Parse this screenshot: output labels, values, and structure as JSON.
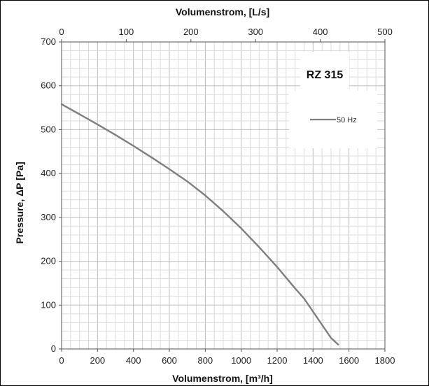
{
  "chart_data": {
    "type": "line",
    "title": "RZ 315",
    "xlabel": "Volumenstrom, [m³/h]",
    "x2label": "Volumenstrom, [L/s]",
    "ylabel": "Pressure, ΔP [Pa]",
    "xlim": [
      0,
      1800
    ],
    "x2lim": [
      0,
      500
    ],
    "ylim": [
      0,
      700
    ],
    "xticks": [
      0,
      200,
      400,
      600,
      800,
      1000,
      1200,
      1400,
      1600,
      1800
    ],
    "x2ticks": [
      0,
      100,
      200,
      300,
      400,
      500
    ],
    "yticks": [
      0,
      100,
      200,
      300,
      400,
      500,
      600,
      700
    ],
    "grid": true,
    "legend_position": "top-right",
    "series": [
      {
        "name": "50 Hz",
        "color": "#7f7f7f",
        "x": [
          0,
          100,
          200,
          300,
          400,
          500,
          600,
          700,
          800,
          900,
          1000,
          1100,
          1200,
          1300,
          1350,
          1400,
          1450,
          1500,
          1540
        ],
        "y": [
          558,
          535,
          512,
          488,
          463,
          437,
          410,
          382,
          350,
          314,
          275,
          232,
          187,
          138,
          115,
          85,
          55,
          25,
          10
        ]
      }
    ]
  }
}
